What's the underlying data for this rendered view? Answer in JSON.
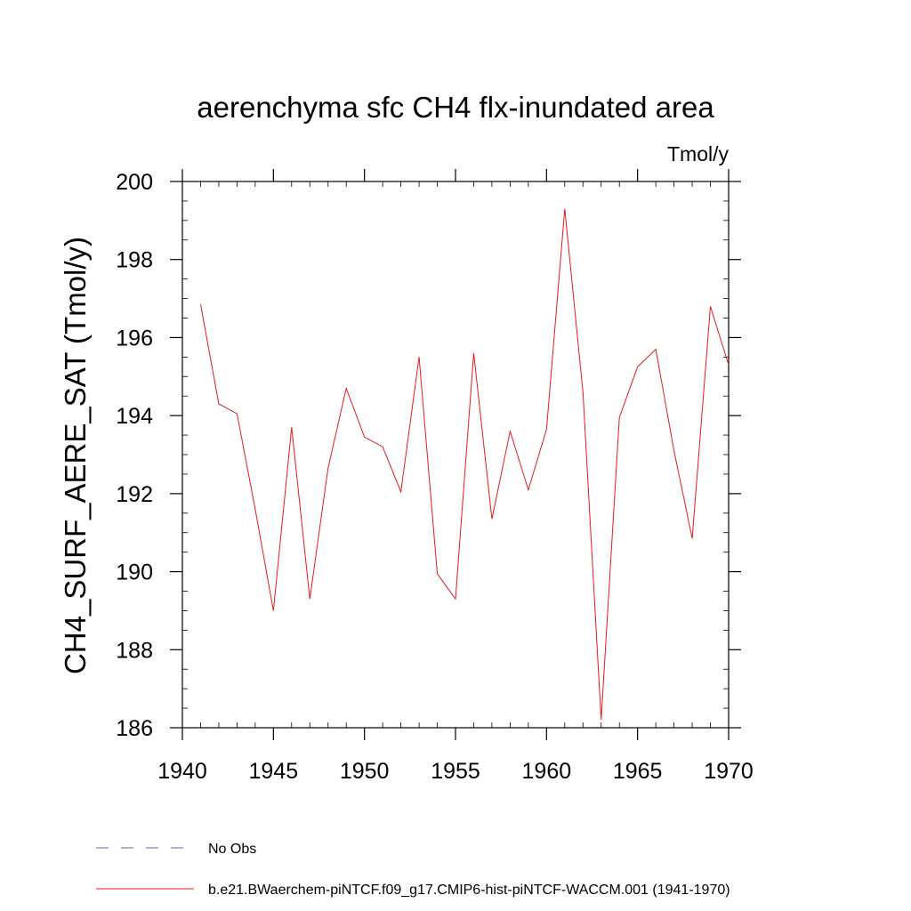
{
  "chart_data": {
    "type": "line",
    "title": "aerenchyma sfc CH4 flx-inundated area",
    "units": "Tmol/y",
    "xlabel": "",
    "ylabel": "CH4_SURF_AERE_SAT  (Tmol/y)",
    "xlim": [
      1940,
      1970
    ],
    "ylim": [
      186,
      200
    ],
    "x_ticks": [
      1940,
      1945,
      1950,
      1955,
      1960,
      1965,
      1970
    ],
    "y_ticks": [
      186,
      188,
      190,
      192,
      194,
      196,
      198,
      200
    ],
    "grid": false,
    "series": [
      {
        "name": "b.e21.BWaerchem-piNTCF.f09_g17.CMIP6-hist-piNTCF-WACCM.001 (1941-1970)",
        "color": "#e8191d",
        "style": "solid",
        "x": [
          1941,
          1942,
          1943,
          1944,
          1945,
          1946,
          1947,
          1948,
          1949,
          1950,
          1951,
          1952,
          1953,
          1954,
          1955,
          1956,
          1957,
          1958,
          1959,
          1960,
          1961,
          1962,
          1963,
          1964,
          1965,
          1966,
          1967,
          1968,
          1969,
          1970
        ],
        "y": [
          196.85,
          194.3,
          194.05,
          191.6,
          189.0,
          193.7,
          189.3,
          192.65,
          194.7,
          193.45,
          193.2,
          192.05,
          195.5,
          189.95,
          189.3,
          195.6,
          191.35,
          193.6,
          192.1,
          193.65,
          199.3,
          194.6,
          186.2,
          193.95,
          195.25,
          195.7,
          193.1,
          190.85,
          196.8,
          195.3
        ]
      }
    ],
    "legend": {
      "placement": "bottom-left",
      "entries": [
        {
          "label": "No Obs",
          "color": "#6f5fa8",
          "style": "dashed"
        },
        {
          "label": "b.e21.BWaerchem-piNTCF.f09_g17.CMIP6-hist-piNTCF-WACCM.001 (1941-1970)",
          "color": "#e8191d",
          "style": "solid"
        }
      ]
    }
  }
}
